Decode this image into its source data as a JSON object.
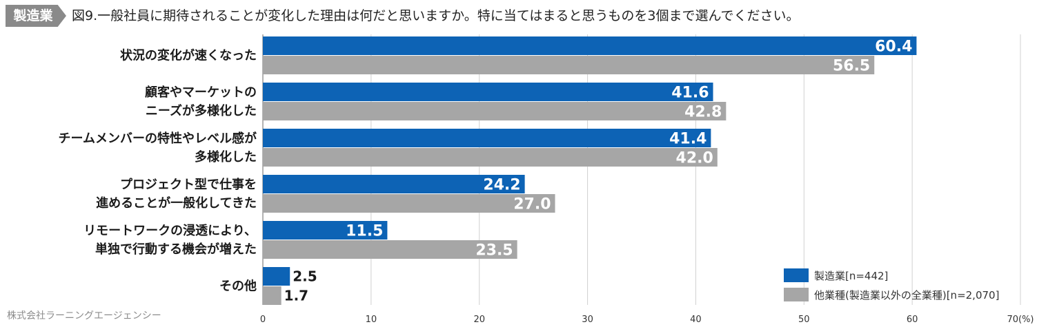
{
  "header": {
    "tag": "製造業",
    "title": "図9.一般社員に期待されることが変化した理由は何だと思いますか。特に当てはまると思うものを3個まで選んでください。"
  },
  "footer": {
    "credit": "株式会社ラーニングエージェンシー"
  },
  "chart_data": {
    "type": "bar",
    "orientation": "horizontal",
    "title": "図9.一般社員に期待されることが変化した理由は何だと思いますか。特に当てはまると思うものを3個まで選んでください。",
    "categories": [
      [
        "状況の変化が速くなった"
      ],
      [
        "顧客やマーケットの",
        "ニーズが多様化した"
      ],
      [
        "チームメンバーの特性やレベル感が",
        "多様化した"
      ],
      [
        "プロジェクト型で仕事を",
        "進めることが一般化してきた"
      ],
      [
        "リモートワークの浸透により、",
        "単独で行動する機会が増えた"
      ],
      [
        "その他"
      ]
    ],
    "series": [
      {
        "name": "製造業[n=442]",
        "color": "#0d63b5",
        "values": [
          60.4,
          41.6,
          41.4,
          24.2,
          11.5,
          2.5
        ]
      },
      {
        "name": "他業種(製造業以外の全業種)[n=2,070]",
        "color": "#a6a6a6",
        "values": [
          56.5,
          42.8,
          42.0,
          27.0,
          23.5,
          1.7
        ]
      }
    ],
    "xlim": [
      0,
      70
    ],
    "ticks": [
      "0",
      "10",
      "20",
      "30",
      "40",
      "50",
      "60",
      "70(%)"
    ],
    "grid": true,
    "legend": "bottom-right"
  }
}
